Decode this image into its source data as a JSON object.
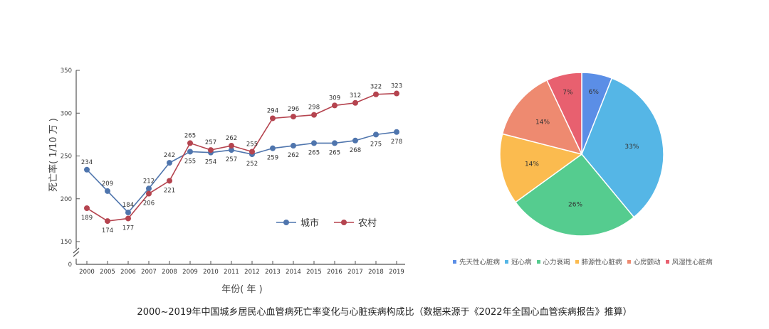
{
  "caption": "2000~2019年中国城乡居民心血管病死亡率变化与心脏疾病构成比（数据来源于《2022年全国心血管疾病报告》推算）",
  "chart_data": [
    {
      "type": "line",
      "title": "",
      "xlabel": "年份( 年 )",
      "ylabel": "死亡率( 1/10 万 )",
      "x": [
        "2000",
        "2005",
        "2006",
        "2007",
        "2008",
        "2009",
        "2010",
        "2011",
        "2012",
        "2013",
        "2014",
        "2015",
        "2016",
        "2017",
        "2018",
        "2019"
      ],
      "ylim": [
        150,
        350
      ],
      "yticks": [
        150,
        200,
        250,
        300,
        350
      ],
      "ybreak_tick": "0",
      "axis_break": true,
      "legend_position": "lower-right",
      "series": [
        {
          "name": "城市",
          "color": "#4f75ad",
          "values": [
            234,
            209,
            184,
            212,
            242,
            255,
            254,
            257,
            252,
            259,
            262,
            265,
            265,
            268,
            275,
            278
          ],
          "labels": [
            "234",
            "209",
            "184",
            "212",
            "242",
            "255",
            "254",
            "257",
            "252",
            "259",
            "262",
            "265",
            "265",
            "268",
            "275",
            "278"
          ]
        },
        {
          "name": "农村",
          "color": "#b5444f",
          "values": [
            189,
            174,
            177,
            206,
            221,
            265,
            257,
            262,
            255,
            294,
            296,
            298,
            309,
            312,
            322,
            323
          ],
          "labels": [
            "189",
            "174",
            "177",
            "206",
            "221",
            "265",
            "257",
            "262",
            "255",
            "294",
            "296",
            "298",
            "309",
            "312",
            "322",
            "323"
          ]
        }
      ]
    },
    {
      "type": "pie",
      "title": "",
      "legend_position": "bottom",
      "slices": [
        {
          "name": "先天性心脏病",
          "value": 6,
          "label": "6%",
          "color": "#5b8ee6"
        },
        {
          "name": "冠心病",
          "value": 33,
          "label": "33%",
          "color": "#55b6e6"
        },
        {
          "name": "心力衰竭",
          "value": 26,
          "label": "26%",
          "color": "#55cc8f"
        },
        {
          "name": "肺源性心脏病",
          "value": 14,
          "label": "14%",
          "color": "#fbbb4f"
        },
        {
          "name": "心房颤动",
          "value": 14,
          "label": "14%",
          "color": "#ee8a70"
        },
        {
          "name": "风湿性心脏病",
          "value": 7,
          "label": "7%",
          "color": "#e8606f"
        }
      ]
    }
  ]
}
